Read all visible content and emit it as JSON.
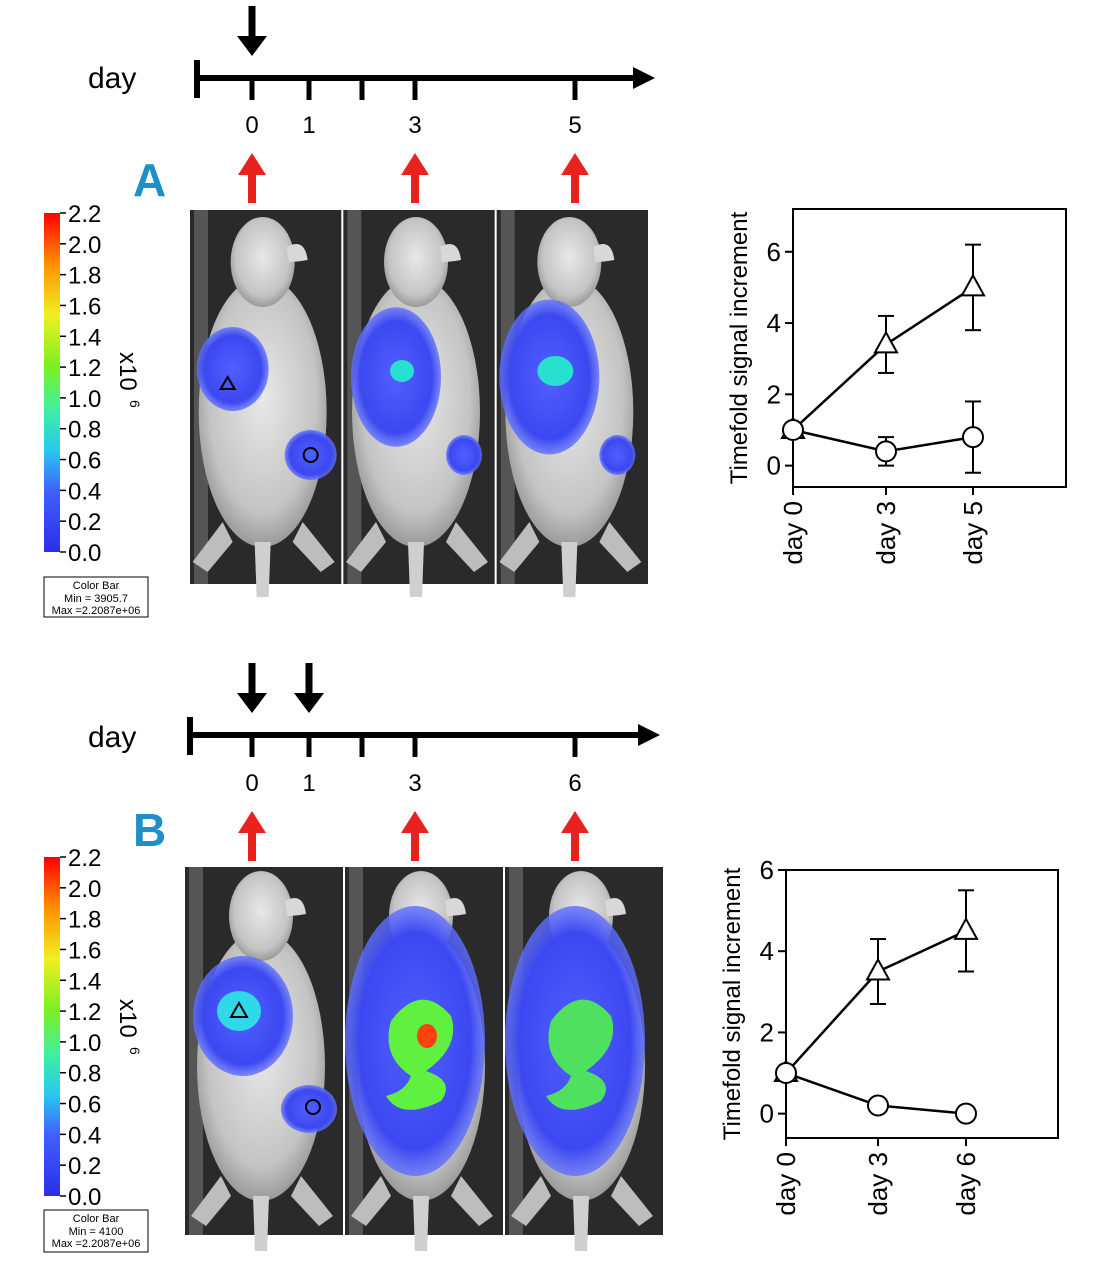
{
  "colors": {
    "panel_letter": "#1f8fc6",
    "timeline_arrow": "#000000",
    "imaging_arrow": "#e8231f",
    "signal_low": "#3c48f0",
    "signal_high": "#ff0000"
  },
  "panels": [
    {
      "letter": "A",
      "timeline": {
        "axis_label": "day",
        "tick_labels": [
          "0",
          "1",
          "3",
          "5"
        ],
        "treatment_days_label": [
          "0"
        ],
        "imaging_days_label": [
          "0",
          "3",
          "5"
        ]
      },
      "colorbar": {
        "ticks": [
          "2.2",
          "2.0",
          "1.8",
          "1.6",
          "1.4",
          "1.2",
          "1.0",
          "0.8",
          "0.6",
          "0.4",
          "0.2",
          "0.0"
        ],
        "unit_base": "x10",
        "unit_exp": "6",
        "box_title": "Color Bar",
        "box_min": "Min = 3905.7",
        "box_max": "Max =2.2087e+06"
      }
    },
    {
      "letter": "B",
      "timeline": {
        "axis_label": "day",
        "tick_labels": [
          "0",
          "1",
          "3",
          "6"
        ],
        "treatment_days_label": [
          "0",
          "1"
        ],
        "imaging_days_label": [
          "0",
          "3",
          "6"
        ]
      },
      "colorbar": {
        "ticks": [
          "2.2",
          "2.0",
          "1.8",
          "1.6",
          "1.4",
          "1.2",
          "1.0",
          "0.8",
          "0.6",
          "0.4",
          "0.2",
          "0.0"
        ],
        "unit_base": "x10",
        "unit_exp": "6",
        "box_title": "Color Bar",
        "box_min": "Min = 4100",
        "box_max": "Max =2.2087e+06"
      }
    }
  ],
  "chart_data": [
    {
      "type": "line",
      "panel": "A",
      "categories": [
        "day 0",
        "day 3",
        "day 5"
      ],
      "ylabel": "Timefold signal increment",
      "xlabel": "",
      "ylim": [
        -0.6,
        7.2
      ],
      "yticks": [
        "0",
        "2",
        "4",
        "6"
      ],
      "series": [
        {
          "marker": "triangle",
          "values": [
            1.0,
            3.4,
            5.0
          ],
          "errors": [
            0.1,
            0.8,
            1.2
          ]
        },
        {
          "marker": "circle",
          "values": [
            1.0,
            0.4,
            0.8
          ],
          "errors": [
            0.1,
            0.4,
            1.0
          ]
        }
      ]
    },
    {
      "type": "line",
      "panel": "B",
      "categories": [
        "day 0",
        "day 3",
        "day 6"
      ],
      "ylabel": "Timefold signal increment",
      "xlabel": "",
      "ylim": [
        -0.6,
        6.0
      ],
      "yticks": [
        "0",
        "2",
        "4",
        "6"
      ],
      "series": [
        {
          "marker": "triangle",
          "values": [
            1.0,
            3.5,
            4.5
          ],
          "errors": [
            0.1,
            0.8,
            1.0
          ]
        },
        {
          "marker": "circle",
          "values": [
            1.0,
            0.2,
            0.0
          ],
          "errors": [
            0.1,
            0.1,
            0.1
          ]
        }
      ]
    }
  ]
}
